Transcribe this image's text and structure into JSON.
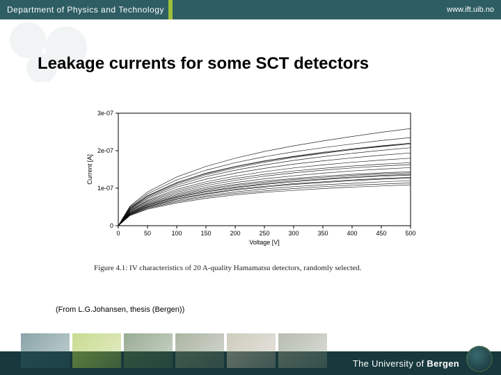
{
  "header": {
    "dept": "Department of Physics and Technology",
    "url": "www.ift.uib.no",
    "bg": "#2e5d63",
    "accent": "#9fbf3b"
  },
  "title": "Leakage currents for some SCT detectors",
  "title_fontsize": 24,
  "chart": {
    "type": "line",
    "xlabel": "Voltage [V]",
    "ylabel": "Current [A]",
    "label_fontsize": 9,
    "tick_fontsize": 9,
    "xlim": [
      0,
      500
    ],
    "xtick_step": 50,
    "xticks": [
      0,
      50,
      100,
      150,
      200,
      250,
      300,
      350,
      400,
      450,
      500
    ],
    "yticks_raw": [
      0,
      1e-07,
      2e-07,
      3e-07
    ],
    "ytick_labels": [
      "0",
      "1e-07",
      "2e-07",
      "3e-07"
    ],
    "ylim": [
      0,
      3e-07
    ],
    "background_color": "#ffffff",
    "axis_color": "#000000",
    "line_color": "#000000",
    "line_width": 0.7,
    "n_series": 20,
    "series": [
      [
        [
          0,
          0
        ],
        [
          20,
          0.48
        ],
        [
          50,
          0.8
        ],
        [
          100,
          1.15
        ],
        [
          150,
          1.4
        ],
        [
          200,
          1.58
        ],
        [
          250,
          1.73
        ],
        [
          300,
          1.85
        ],
        [
          350,
          1.96
        ],
        [
          400,
          2.05
        ],
        [
          450,
          2.13
        ],
        [
          500,
          2.2
        ]
      ],
      [
        [
          0,
          0
        ],
        [
          20,
          0.5
        ],
        [
          50,
          0.85
        ],
        [
          100,
          1.22
        ],
        [
          150,
          1.48
        ],
        [
          200,
          1.68
        ],
        [
          250,
          1.84
        ],
        [
          300,
          1.97
        ],
        [
          350,
          2.08
        ],
        [
          400,
          2.18
        ],
        [
          450,
          2.27
        ],
        [
          500,
          2.35
        ]
      ],
      [
        [
          0,
          0
        ],
        [
          20,
          0.45
        ],
        [
          50,
          0.78
        ],
        [
          100,
          1.12
        ],
        [
          150,
          1.36
        ],
        [
          200,
          1.54
        ],
        [
          250,
          1.69
        ],
        [
          300,
          1.82
        ],
        [
          350,
          1.93
        ],
        [
          400,
          2.03
        ],
        [
          450,
          2.12
        ],
        [
          500,
          2.2
        ]
      ],
      [
        [
          0,
          0
        ],
        [
          20,
          0.52
        ],
        [
          50,
          0.9
        ],
        [
          100,
          1.3
        ],
        [
          150,
          1.58
        ],
        [
          200,
          1.8
        ],
        [
          250,
          1.98
        ],
        [
          300,
          2.13
        ],
        [
          350,
          2.26
        ],
        [
          400,
          2.38
        ],
        [
          450,
          2.49
        ],
        [
          500,
          2.59
        ]
      ],
      [
        [
          0,
          0
        ],
        [
          20,
          0.44
        ],
        [
          50,
          0.75
        ],
        [
          100,
          1.08
        ],
        [
          150,
          1.31
        ],
        [
          200,
          1.48
        ],
        [
          250,
          1.62
        ],
        [
          300,
          1.74
        ],
        [
          350,
          1.84
        ],
        [
          400,
          1.93
        ],
        [
          450,
          2.01
        ],
        [
          500,
          2.08
        ]
      ],
      [
        [
          0,
          0
        ],
        [
          20,
          0.4
        ],
        [
          50,
          0.68
        ],
        [
          100,
          0.97
        ],
        [
          150,
          1.17
        ],
        [
          200,
          1.32
        ],
        [
          250,
          1.44
        ],
        [
          300,
          1.54
        ],
        [
          350,
          1.62
        ],
        [
          400,
          1.69
        ],
        [
          450,
          1.75
        ],
        [
          500,
          1.8
        ]
      ],
      [
        [
          0,
          0
        ],
        [
          20,
          0.36
        ],
        [
          50,
          0.6
        ],
        [
          100,
          0.85
        ],
        [
          150,
          1.02
        ],
        [
          200,
          1.15
        ],
        [
          250,
          1.25
        ],
        [
          300,
          1.33
        ],
        [
          350,
          1.4
        ],
        [
          400,
          1.46
        ],
        [
          450,
          1.51
        ],
        [
          500,
          1.55
        ]
      ],
      [
        [
          0,
          0
        ],
        [
          20,
          0.38
        ],
        [
          50,
          0.63
        ],
        [
          100,
          0.89
        ],
        [
          150,
          1.07
        ],
        [
          200,
          1.21
        ],
        [
          250,
          1.32
        ],
        [
          300,
          1.41
        ],
        [
          350,
          1.48
        ],
        [
          400,
          1.54
        ],
        [
          450,
          1.59
        ],
        [
          500,
          1.63
        ]
      ],
      [
        [
          0,
          0
        ],
        [
          20,
          0.34
        ],
        [
          50,
          0.56
        ],
        [
          100,
          0.79
        ],
        [
          150,
          0.95
        ],
        [
          200,
          1.07
        ],
        [
          250,
          1.16
        ],
        [
          300,
          1.23
        ],
        [
          350,
          1.29
        ],
        [
          400,
          1.34
        ],
        [
          450,
          1.38
        ],
        [
          500,
          1.41
        ]
      ],
      [
        [
          0,
          0
        ],
        [
          20,
          0.32
        ],
        [
          50,
          0.53
        ],
        [
          100,
          0.75
        ],
        [
          150,
          0.9
        ],
        [
          200,
          1.01
        ],
        [
          250,
          1.1
        ],
        [
          300,
          1.17
        ],
        [
          350,
          1.23
        ],
        [
          400,
          1.28
        ],
        [
          450,
          1.32
        ],
        [
          500,
          1.35
        ]
      ],
      [
        [
          0,
          0
        ],
        [
          20,
          0.3
        ],
        [
          50,
          0.5
        ],
        [
          100,
          0.7
        ],
        [
          150,
          0.84
        ],
        [
          200,
          0.95
        ],
        [
          250,
          1.03
        ],
        [
          300,
          1.1
        ],
        [
          350,
          1.15
        ],
        [
          400,
          1.2
        ],
        [
          450,
          1.24
        ],
        [
          500,
          1.27
        ]
      ],
      [
        [
          0,
          0
        ],
        [
          20,
          0.42
        ],
        [
          50,
          0.72
        ],
        [
          100,
          1.03
        ],
        [
          150,
          1.24
        ],
        [
          200,
          1.4
        ],
        [
          250,
          1.53
        ],
        [
          300,
          1.64
        ],
        [
          350,
          1.73
        ],
        [
          400,
          1.81
        ],
        [
          450,
          1.88
        ],
        [
          500,
          1.94
        ]
      ],
      [
        [
          0,
          0
        ],
        [
          20,
          0.46
        ],
        [
          50,
          0.8
        ],
        [
          100,
          1.15
        ],
        [
          150,
          1.39
        ],
        [
          200,
          1.57
        ],
        [
          250,
          1.72
        ],
        [
          300,
          1.84
        ],
        [
          350,
          1.94
        ],
        [
          400,
          2.03
        ],
        [
          450,
          2.11
        ],
        [
          500,
          2.18
        ]
      ],
      [
        [
          0,
          0
        ],
        [
          20,
          0.39
        ],
        [
          50,
          0.66
        ],
        [
          100,
          0.93
        ],
        [
          150,
          1.12
        ],
        [
          200,
          1.26
        ],
        [
          250,
          1.37
        ],
        [
          300,
          1.46
        ],
        [
          350,
          1.53
        ],
        [
          400,
          1.59
        ],
        [
          450,
          1.64
        ],
        [
          500,
          1.68
        ]
      ],
      [
        [
          0,
          0
        ],
        [
          20,
          0.35
        ],
        [
          50,
          0.58
        ],
        [
          100,
          0.82
        ],
        [
          150,
          0.98
        ],
        [
          200,
          1.1
        ],
        [
          250,
          1.19
        ],
        [
          300,
          1.26
        ],
        [
          350,
          1.32
        ],
        [
          400,
          1.37
        ],
        [
          450,
          1.41
        ],
        [
          500,
          1.44
        ]
      ],
      [
        [
          0,
          0
        ],
        [
          20,
          0.33
        ],
        [
          50,
          0.55
        ],
        [
          100,
          0.77
        ],
        [
          150,
          0.92
        ],
        [
          200,
          1.03
        ],
        [
          250,
          1.12
        ],
        [
          300,
          1.19
        ],
        [
          350,
          1.25
        ],
        [
          400,
          1.3
        ],
        [
          450,
          1.34
        ],
        [
          500,
          1.37
        ]
      ],
      [
        [
          0,
          0
        ],
        [
          20,
          0.31
        ],
        [
          50,
          0.51
        ],
        [
          100,
          0.72
        ],
        [
          150,
          0.86
        ],
        [
          200,
          0.97
        ],
        [
          250,
          1.05
        ],
        [
          300,
          1.12
        ],
        [
          350,
          1.17
        ],
        [
          400,
          1.22
        ],
        [
          450,
          1.26
        ],
        [
          500,
          1.29
        ]
      ],
      [
        [
          0,
          0
        ],
        [
          20,
          0.29
        ],
        [
          50,
          0.48
        ],
        [
          100,
          0.67
        ],
        [
          150,
          0.8
        ],
        [
          200,
          0.9
        ],
        [
          250,
          0.98
        ],
        [
          300,
          1.04
        ],
        [
          350,
          1.09
        ],
        [
          400,
          1.13
        ],
        [
          450,
          1.17
        ],
        [
          500,
          1.2
        ]
      ],
      [
        [
          0,
          0
        ],
        [
          20,
          0.28
        ],
        [
          50,
          0.46
        ],
        [
          100,
          0.64
        ],
        [
          150,
          0.77
        ],
        [
          200,
          0.86
        ],
        [
          250,
          0.93
        ],
        [
          300,
          0.99
        ],
        [
          350,
          1.04
        ],
        [
          400,
          1.08
        ],
        [
          450,
          1.11
        ],
        [
          500,
          1.14
        ]
      ],
      [
        [
          0,
          0
        ],
        [
          20,
          0.27
        ],
        [
          50,
          0.44
        ],
        [
          100,
          0.61
        ],
        [
          150,
          0.73
        ],
        [
          200,
          0.82
        ],
        [
          250,
          0.89
        ],
        [
          300,
          0.94
        ],
        [
          350,
          0.99
        ],
        [
          400,
          1.03
        ],
        [
          450,
          1.06
        ],
        [
          500,
          1.09
        ]
      ]
    ]
  },
  "caption": "Figure 4.1: IV characteristics of 20 A-quality Hamamatsu detectors, randomly selected.",
  "credit": "(From L.G.Johansen, thesis (Bergen))",
  "footer": {
    "text_light": "The University of ",
    "text_heavy": "Bergen",
    "bar_bg": "#17383c",
    "photo_tints": [
      "#2e5d63",
      "#9fbf3b",
      "#4a6b40",
      "#6b7a5b",
      "#a8a48b",
      "#7f8a72"
    ]
  }
}
